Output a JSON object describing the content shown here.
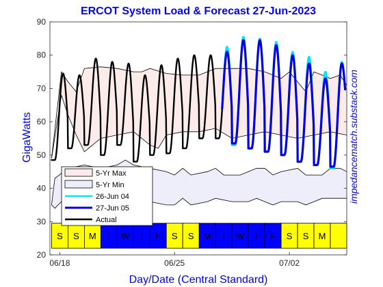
{
  "chart_data": {
    "type": "line",
    "title": "ERCOT System Load & Forecast 27-Jun-2023",
    "xlabel": "Day/Date (Central Standard)",
    "ylabel": "GigaWatts",
    "watermark": "impedancematch.substack.com",
    "ylim": [
      20,
      90
    ],
    "yticks": [
      20,
      30,
      40,
      50,
      60,
      70,
      80,
      90
    ],
    "xlim": [
      -0.1,
      18.0
    ],
    "xticks": [
      {
        "x": 0.5,
        "label": "06/18"
      },
      {
        "x": 7.5,
        "label": "06/25"
      },
      {
        "x": 14.5,
        "label": "07/02"
      }
    ],
    "day_strip": {
      "y_range": [
        22,
        29.5
      ],
      "days": [
        {
          "label": "S",
          "weekend": true
        },
        {
          "label": "S",
          "weekend": true
        },
        {
          "label": "M",
          "weekend": true
        },
        {
          "label": "T",
          "weekend": false
        },
        {
          "label": "W",
          "weekend": false
        },
        {
          "label": "T",
          "weekend": false
        },
        {
          "label": "F",
          "weekend": false
        },
        {
          "label": "S",
          "weekend": true
        },
        {
          "label": "S",
          "weekend": true
        },
        {
          "label": "M",
          "weekend": false
        },
        {
          "label": "T",
          "weekend": false
        },
        {
          "label": "W",
          "weekend": false
        },
        {
          "label": "T",
          "weekend": false
        },
        {
          "label": "F",
          "weekend": false
        },
        {
          "label": "S",
          "weekend": true
        },
        {
          "label": "S",
          "weekend": true
        },
        {
          "label": "M",
          "weekend": true
        },
        {
          "label": "",
          "weekend": true
        }
      ],
      "weekend_color": "#ffff00",
      "weekday_color": "#0000ff"
    },
    "band_max": {
      "name": "5-Yr Max",
      "fill": "#fbece9",
      "upper": [
        [
          0.0,
          49
        ],
        [
          0.6,
          75
        ],
        [
          1.0,
          72
        ],
        [
          1.5,
          69
        ],
        [
          2.0,
          76
        ],
        [
          3.0,
          76.5
        ],
        [
          4.0,
          76
        ],
        [
          5.0,
          75
        ],
        [
          5.5,
          75
        ],
        [
          6.0,
          76
        ],
        [
          7.0,
          74.5
        ],
        [
          8.0,
          74
        ],
        [
          9.0,
          74
        ],
        [
          10.0,
          76
        ],
        [
          11.0,
          76
        ],
        [
          12.0,
          76
        ],
        [
          13.0,
          75
        ],
        [
          14.0,
          73
        ],
        [
          14.5,
          75
        ],
        [
          15.0,
          72
        ],
        [
          15.5,
          69
        ],
        [
          16.0,
          75
        ],
        [
          16.5,
          74
        ],
        [
          17.0,
          73
        ],
        [
          17.6,
          74
        ],
        [
          18.0,
          71
        ]
      ],
      "lower": [
        [
          0.0,
          49
        ],
        [
          0.6,
          68
        ],
        [
          1.0,
          62
        ],
        [
          1.5,
          56
        ],
        [
          2.0,
          51
        ],
        [
          3.0,
          55
        ],
        [
          4.0,
          56
        ],
        [
          5.0,
          57
        ],
        [
          6.0,
          53
        ],
        [
          6.5,
          52
        ],
        [
          7.0,
          56
        ],
        [
          8.0,
          57
        ],
        [
          9.0,
          57
        ],
        [
          10.0,
          58
        ],
        [
          11.0,
          55
        ],
        [
          12.0,
          56
        ],
        [
          13.0,
          57
        ],
        [
          14.0,
          56
        ],
        [
          15.0,
          55
        ],
        [
          16.0,
          56
        ],
        [
          17.0,
          57
        ],
        [
          18.0,
          56
        ]
      ]
    },
    "band_min": {
      "name": "5-Yr Min",
      "fill": "#edeefa",
      "upper": [
        [
          0.0,
          35
        ],
        [
          0.2,
          43
        ],
        [
          1.0,
          46
        ],
        [
          2.0,
          47
        ],
        [
          3.0,
          46
        ],
        [
          4.0,
          47
        ],
        [
          4.5,
          48.5
        ],
        [
          5.0,
          47
        ],
        [
          6.0,
          46
        ],
        [
          7.0,
          45
        ],
        [
          7.5,
          44
        ],
        [
          8.0,
          46
        ],
        [
          8.5,
          44
        ],
        [
          9.5,
          45
        ],
        [
          10.0,
          46
        ],
        [
          10.5,
          44
        ],
        [
          11.5,
          44
        ],
        [
          12.0,
          45
        ],
        [
          12.5,
          46
        ],
        [
          13.0,
          46
        ],
        [
          13.5,
          44
        ],
        [
          14.0,
          45
        ],
        [
          15.0,
          46
        ],
        [
          15.5,
          44
        ],
        [
          16.5,
          44
        ],
        [
          17.0,
          46
        ],
        [
          17.6,
          46
        ],
        [
          18.0,
          45
        ]
      ],
      "lower": [
        [
          0.0,
          35
        ],
        [
          0.2,
          34
        ],
        [
          1.0,
          38
        ],
        [
          2.0,
          37
        ],
        [
          3.0,
          37
        ],
        [
          4.0,
          38
        ],
        [
          4.5,
          38
        ],
        [
          5.0,
          37
        ],
        [
          6.0,
          36
        ],
        [
          7.0,
          35
        ],
        [
          7.5,
          35
        ],
        [
          8.0,
          37
        ],
        [
          8.5,
          35
        ],
        [
          9.5,
          36
        ],
        [
          10.0,
          37
        ],
        [
          11.0,
          36
        ],
        [
          12.0,
          36
        ],
        [
          12.5,
          37
        ],
        [
          13.0,
          36
        ],
        [
          13.5,
          35
        ],
        [
          14.0,
          36
        ],
        [
          15.0,
          36
        ],
        [
          15.5,
          35
        ],
        [
          16.0,
          36
        ],
        [
          16.5,
          37
        ],
        [
          17.0,
          37
        ],
        [
          18.0,
          37
        ]
      ]
    },
    "series": [
      {
        "name": "26-Jun 04",
        "color": "#00e5ff",
        "width": 3.0,
        "x_start": 10.4,
        "x_end": 17.9,
        "peaks": [
          82.5,
          85.5,
          85,
          84,
          81,
          79.5,
          75,
          78
        ],
        "troughs": [
          54,
          53,
          52,
          51,
          50,
          48,
          47,
          46,
          54
        ]
      },
      {
        "name": "27-Jun 05",
        "color": "#0000e0",
        "width": 3.2,
        "x_start": 10.4,
        "x_end": 17.9,
        "peaks": [
          81,
          84.5,
          84.5,
          83,
          80,
          77.5,
          73,
          77.5
        ],
        "troughs": [
          55,
          53.5,
          52,
          51,
          50,
          48,
          47,
          46.5,
          55
        ]
      },
      {
        "name": "Actual",
        "color": "#000000",
        "width": 2.4,
        "x_start": 0.0,
        "x_end": 10.4,
        "peaks": [
          74.5,
          74,
          79,
          78,
          77.5,
          74,
          77,
          79,
          80
        ],
        "troughs": [
          48.5,
          52,
          53,
          50,
          53,
          48,
          50,
          50.5,
          52,
          55
        ]
      }
    ],
    "legend": {
      "placement": "lower-left",
      "entries": [
        "5-Yr Max",
        "5-Yr Min",
        "26-Jun 04",
        "27-Jun 05",
        "Actual"
      ]
    }
  }
}
